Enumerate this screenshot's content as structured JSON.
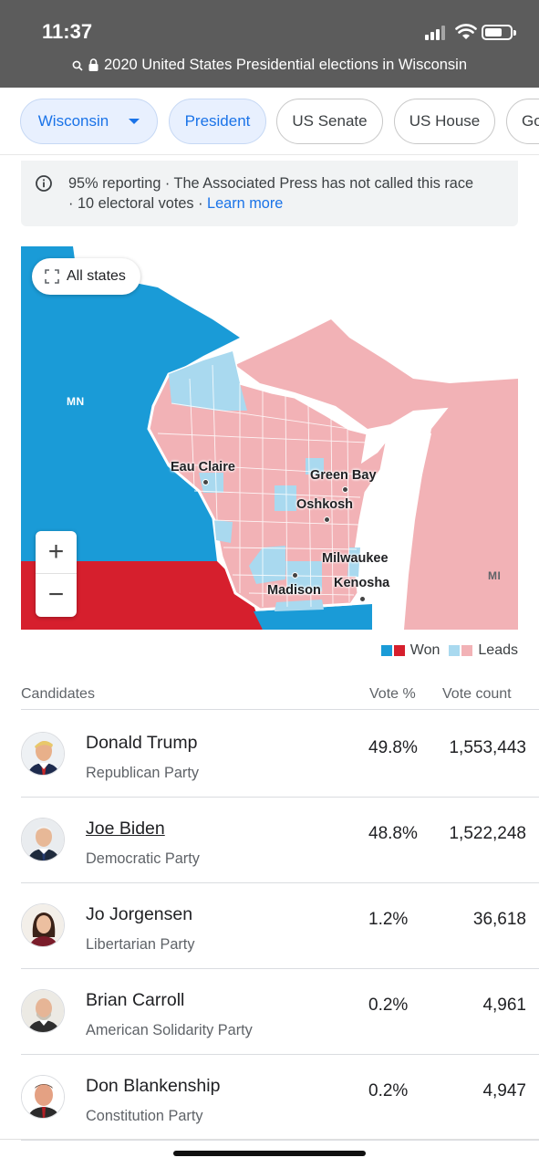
{
  "status_bar": {
    "time": "11:37"
  },
  "url_bar": {
    "title": "2020 United States Presidential elections in Wisconsin"
  },
  "chips": [
    {
      "label": "Wisconsin"
    },
    {
      "label": "President"
    },
    {
      "label": "US Senate"
    },
    {
      "label": "US House"
    },
    {
      "label": "Go"
    }
  ],
  "info": {
    "line1": "95% reporting · The Associated Press has not called this race",
    "line2_prefix": "· 10 electoral votes · ",
    "learn_more": "Learn more"
  },
  "map": {
    "all_states": "All states",
    "zoom_in": "+",
    "zoom_out": "−",
    "states": {
      "mn": "MN",
      "mi": "MI"
    },
    "cities": {
      "eau_claire": "Eau Claire",
      "green_bay": "Green Bay",
      "oshkosh": "Oshkosh",
      "milwaukee": "Milwaukee",
      "madison": "Madison",
      "kenosha": "Kenosha"
    },
    "colors": {
      "dem_won": "#1a9bd7",
      "rep_won": "#d61f2d",
      "dem_leads": "#a9d9ef",
      "rep_leads": "#f2b2b6"
    }
  },
  "legend": {
    "won": "Won",
    "leads": "Leads"
  },
  "table": {
    "headers": {
      "candidates": "Candidates",
      "vote_pct": "Vote %",
      "vote_count": "Vote count"
    },
    "rows": [
      {
        "name": "Donald Trump",
        "party": "Republican Party",
        "pct": "49.8%",
        "count": "1,553,443"
      },
      {
        "name": "Joe Biden",
        "party": "Democratic Party",
        "pct": "48.8%",
        "count": "1,522,248"
      },
      {
        "name": "Jo Jorgensen",
        "party": "Libertarian Party",
        "pct": "1.2%",
        "count": "36,618"
      },
      {
        "name": "Brian Carroll",
        "party": "American Solidarity Party",
        "pct": "0.2%",
        "count": "4,961"
      },
      {
        "name": "Don Blankenship",
        "party": "Constitution Party",
        "pct": "0.2%",
        "count": "4,947"
      }
    ]
  }
}
